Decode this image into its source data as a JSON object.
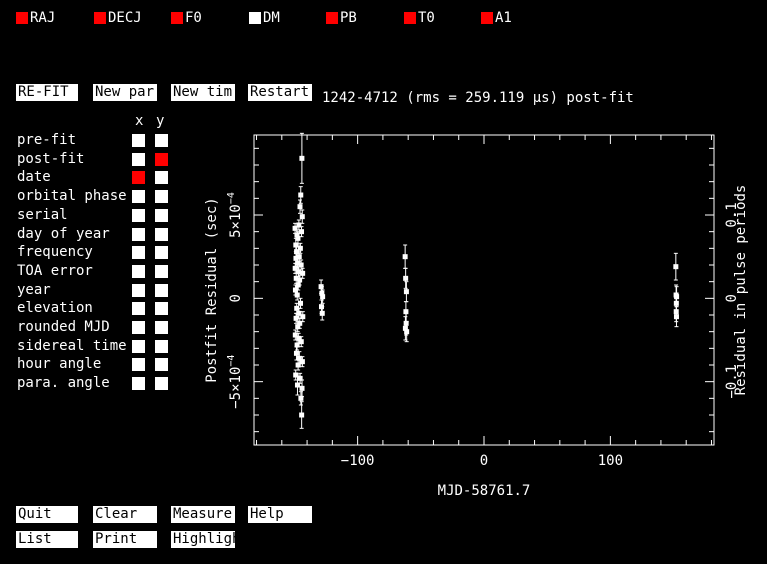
{
  "params": [
    {
      "label": "RAJ",
      "color": "#ff0000"
    },
    {
      "label": "DECJ",
      "color": "#ff0000"
    },
    {
      "label": "F0",
      "color": "#ff0000"
    },
    {
      "label": "DM",
      "color": "#ffffff"
    },
    {
      "label": "PB",
      "color": "#ff0000"
    },
    {
      "label": "T0",
      "color": "#ff0000"
    },
    {
      "label": "A1",
      "color": "#ff0000"
    }
  ],
  "top_buttons": {
    "refit": "RE-FIT",
    "newpar": "New par",
    "newtim": "New tim",
    "restart": "Restart"
  },
  "plot_title": "1242-4712 (rms = 259.119 μs) post-fit",
  "axis_header": {
    "x": "x",
    "y": "y"
  },
  "axis_options": [
    {
      "label": "pre-fit",
      "x": false,
      "y": false
    },
    {
      "label": "post-fit",
      "x": false,
      "y": true
    },
    {
      "label": "date",
      "x": true,
      "y": false
    },
    {
      "label": "orbital phase",
      "x": false,
      "y": false
    },
    {
      "label": "serial",
      "x": false,
      "y": false
    },
    {
      "label": "day of year",
      "x": false,
      "y": false
    },
    {
      "label": "frequency",
      "x": false,
      "y": false
    },
    {
      "label": "TOA error",
      "x": false,
      "y": false
    },
    {
      "label": "year",
      "x": false,
      "y": false
    },
    {
      "label": "elevation",
      "x": false,
      "y": false
    },
    {
      "label": "rounded MJD",
      "x": false,
      "y": false
    },
    {
      "label": "sidereal time",
      "x": false,
      "y": false
    },
    {
      "label": "hour angle",
      "x": false,
      "y": false
    },
    {
      "label": "para. angle",
      "x": false,
      "y": false
    }
  ],
  "bottom_buttons": {
    "quit": "Quit",
    "clear": "Clear",
    "measure": "Measure",
    "help": "Help",
    "list": "List",
    "print": "Print",
    "highlight": "Highlight"
  },
  "chart_data": {
    "type": "scatter",
    "xlabel": "MJD-58761.7",
    "ylabel": "Postfit Residual (sec)",
    "y2label": "Residual in pulse periods",
    "xlim": [
      -182,
      182
    ],
    "ylim": [
      -0.00088,
      0.00098
    ],
    "x_ticks": [
      -100,
      0,
      100
    ],
    "x_tick_labels": [
      "−100",
      "0",
      "100"
    ],
    "y_ticks": [
      -0.0005,
      0,
      0.0005
    ],
    "y_tick_labels": [
      "−5×10",
      "0",
      "5×10"
    ],
    "y_tick_exponents": [
      "−4",
      "",
      "−4"
    ],
    "y2_ticks": [
      -0.0005,
      0,
      0.0005
    ],
    "y2_tick_labels": [
      "−0.1",
      "0",
      "0.1"
    ],
    "points": [
      [
        -149.5,
        0.00042,
        3e-05
      ],
      [
        -149.4,
        0.00018,
        3e-05
      ],
      [
        -149.3,
        -0.00022,
        3e-05
      ],
      [
        -149.2,
        5e-05,
        3e-05
      ],
      [
        -149.0,
        -0.00046,
        3e-05
      ],
      [
        -148.9,
        0.00032,
        4e-05
      ],
      [
        -148.8,
        0.00024,
        3e-05
      ],
      [
        -148.7,
        -0.00012,
        3e-05
      ],
      [
        -148.6,
        0.00012,
        3e-05
      ],
      [
        -148.4,
        -0.00033,
        4e-05
      ],
      [
        -148.3,
        0.00028,
        3e-05
      ],
      [
        -148.2,
        -6e-05,
        3e-05
      ],
      [
        -148.0,
        0.00038,
        3e-05
      ],
      [
        -147.9,
        -0.00028,
        3e-05
      ],
      [
        -147.8,
        2e-05,
        3e-05
      ],
      [
        -147.6,
        -0.00052,
        6e-05
      ],
      [
        -147.5,
        0.00021,
        3e-05
      ],
      [
        -147.4,
        -0.00017,
        3e-05
      ],
      [
        -147.2,
        0.00036,
        4e-05
      ],
      [
        -147.1,
        -0.0004,
        3e-05
      ],
      [
        -147.0,
        8e-05,
        3e-05
      ],
      [
        -146.8,
        0.00016,
        3e-05
      ],
      [
        -146.7,
        -0.00024,
        3e-05
      ],
      [
        -146.5,
        0.00044,
        3e-05
      ],
      [
        -146.4,
        -9e-05,
        3e-05
      ],
      [
        -146.2,
        0.00025,
        3e-05
      ],
      [
        -146.1,
        -0.00036,
        4e-05
      ],
      [
        -145.9,
        0.00011,
        3e-05
      ],
      [
        -145.8,
        -0.00015,
        3e-05
      ],
      [
        -145.6,
        0.00055,
        4e-05
      ],
      [
        -145.5,
        -0.00048,
        3e-05
      ],
      [
        -145.3,
        0.0003,
        3e-05
      ],
      [
        -145.2,
        -3e-05,
        3e-05
      ],
      [
        -145.0,
        0.00062,
        5e-05
      ],
      [
        -144.9,
        -0.0006,
        4e-05
      ],
      [
        -144.7,
        0.0002,
        3e-05
      ],
      [
        -144.6,
        -0.00026,
        3e-05
      ],
      [
        -144.4,
        0.0004,
        3e-05
      ],
      [
        -144.3,
        -0.0007,
        8e-05
      ],
      [
        -144.1,
        0.00084,
        0.00015
      ],
      [
        -144.0,
        -0.00054,
        5e-05
      ],
      [
        -143.8,
        0.00049,
        4e-05
      ],
      [
        -143.7,
        -0.00038,
        3e-05
      ],
      [
        -143.5,
        0.00015,
        3e-05
      ],
      [
        -143.4,
        -0.00011,
        3e-05
      ],
      [
        -128.9,
        7e-05,
        4e-05
      ],
      [
        -128.6,
        -5e-05,
        4e-05
      ],
      [
        -128.3,
        3e-05,
        4e-05
      ],
      [
        -128.0,
        -9e-05,
        4e-05
      ],
      [
        -127.7,
        1e-05,
        4e-05
      ],
      [
        -62.4,
        0.00025,
        7e-05
      ],
      [
        -62.2,
        -0.00018,
        7e-05
      ],
      [
        -62.0,
        0.00012,
        6e-05
      ],
      [
        -61.8,
        -8e-05,
        6e-05
      ],
      [
        -61.6,
        -0.00015,
        7e-05
      ],
      [
        -61.4,
        4e-05,
        6e-05
      ],
      [
        -61.2,
        -0.0002,
        6e-05
      ],
      [
        151.8,
        0.00019,
        8e-05
      ],
      [
        152.0,
        2e-05,
        6e-05
      ],
      [
        152.1,
        -8e-05,
        6e-05
      ],
      [
        152.2,
        -3e-05,
        6e-05
      ],
      [
        152.3,
        -0.00011,
        6e-05
      ],
      [
        152.4,
        1e-05,
        6e-05
      ]
    ]
  }
}
